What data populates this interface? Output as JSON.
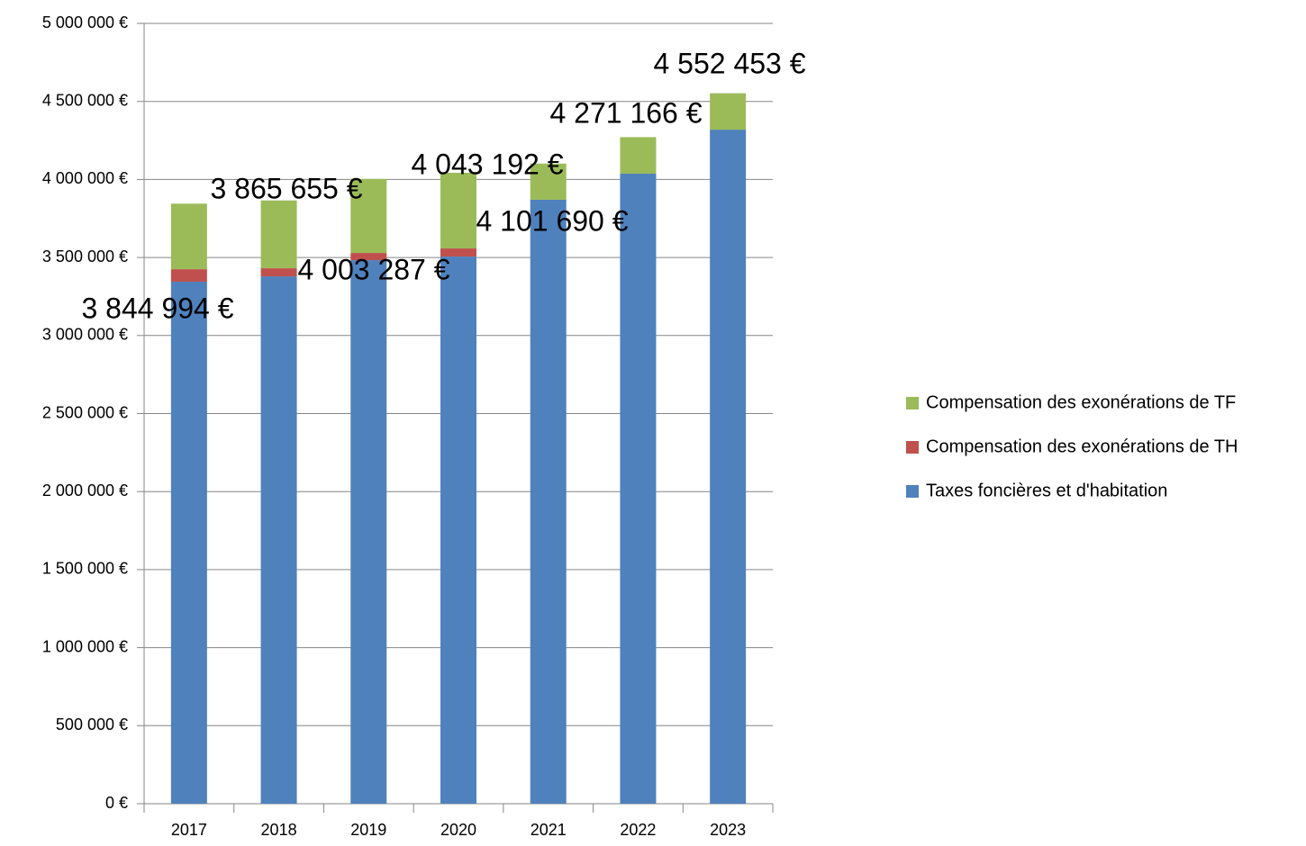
{
  "chart_data": {
    "type": "stacked_bar",
    "categories": [
      "2017",
      "2018",
      "2019",
      "2020",
      "2021",
      "2022",
      "2023"
    ],
    "series": [
      {
        "name": "Taxes foncières et d'habitation",
        "color": "#4f81bd",
        "values": [
          3345000,
          3379000,
          3483000,
          3506000,
          3870000,
          4037000,
          4319000
        ]
      },
      {
        "name": "Compensation des exonérations de TH",
        "color": "#c0504d",
        "values": [
          80000,
          52000,
          46000,
          52000,
          0,
          0,
          0
        ]
      },
      {
        "name": "Compensation des exonérations de TF",
        "color": "#9bbb59",
        "values": [
          419994,
          434655,
          474287,
          485192,
          231690,
          234166,
          233453
        ]
      }
    ],
    "totals": [
      3844994,
      3865655,
      4003287,
      4043192,
      4101690,
      4271166,
      4552453
    ],
    "total_labels": [
      "3 844 994 €",
      "3 865 655 €",
      "4 003 287 €",
      "4 043 192 €",
      "4 101 690 €",
      "4 271 166 €",
      "4 552 453 €"
    ],
    "ylim": [
      0,
      5000000
    ],
    "yticks": [
      {
        "value": 0,
        "label": "0 €"
      },
      {
        "value": 500000,
        "label": "500 000 €"
      },
      {
        "value": 1000000,
        "label": "1 000 000 €"
      },
      {
        "value": 1500000,
        "label": "1 500 000 €"
      },
      {
        "value": 2000000,
        "label": "2 000 000 €"
      },
      {
        "value": 2500000,
        "label": "2 500 000 €"
      },
      {
        "value": 3000000,
        "label": "3 000 000 €"
      },
      {
        "value": 3500000,
        "label": "3 500 000 €"
      },
      {
        "value": 4000000,
        "label": "4 000 000 €"
      },
      {
        "value": 4500000,
        "label": "4 500 000 €"
      },
      {
        "value": 5000000,
        "label": "5 000 000 €"
      }
    ],
    "grid": true,
    "legend": "right"
  }
}
